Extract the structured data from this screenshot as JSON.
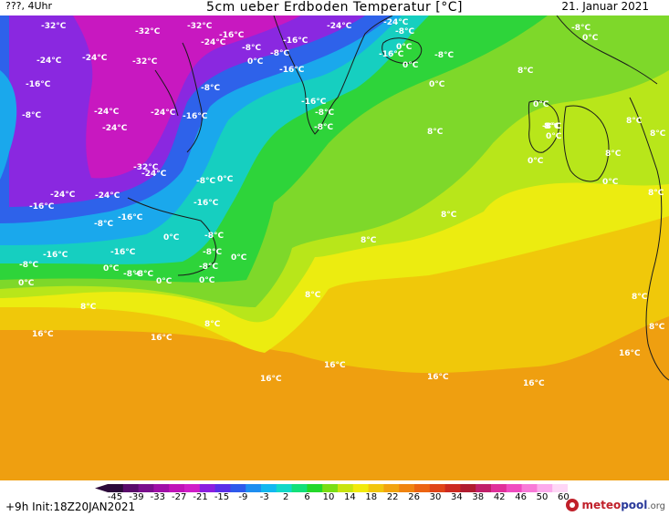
{
  "header": {
    "left": "???, 4Uhr",
    "title": "5cm ueber Erdboden Temperatur [°C]",
    "date": "21. Januar 2021"
  },
  "map": {
    "labels": [
      "-32°C",
      "-32°C",
      "-32°C",
      "-24°C",
      "-24°C",
      "-24°C",
      "-16°C",
      "-16°C",
      "-24°C",
      "-8°C",
      "-24°C",
      "-8°C",
      "-8°C",
      "-16°C",
      "-24°C",
      "-8°C",
      "-32°C",
      "-16°C",
      "-8°C",
      "0°C",
      "-8°C",
      "-16°C",
      "0°C",
      "0°C",
      "0°C",
      "-16°C",
      "-8°C",
      "-24°C",
      "-8°C",
      "-16°C",
      "0°C",
      "8°C",
      "0°C",
      "0°C",
      "-8°C",
      "8°C",
      "-8°C",
      "-24°C",
      "-32°C",
      "-24°C",
      "-24°C",
      "-16°C",
      "-8°C",
      "-8°C",
      "-16°C",
      "-24°C",
      "0°C",
      "-16°C",
      "0°C",
      "-8°C",
      "-16°C",
      "-8°C",
      "-8°C",
      "-8°C",
      "0°C",
      "0°C",
      "-16°C",
      "-8°C",
      "-8°C",
      "0°C",
      "0°C",
      "0°C",
      "8°C",
      "8°C",
      "8°C",
      "8°C",
      "8°C",
      "8°C",
      "0°C",
      "8°C",
      "0°C",
      "8°C",
      "16°C",
      "16°C",
      "8°C",
      "16°C",
      "16°C",
      "16°C",
      "16°C",
      "16°C",
      "8°C",
      "8°C",
      "8°C"
    ]
  },
  "legend": {
    "ticks": [
      "-45",
      "-39",
      "-33",
      "-27",
      "-21",
      "-15",
      "-9",
      "-3",
      "2",
      "6",
      "10",
      "14",
      "18",
      "22",
      "26",
      "30",
      "34",
      "38",
      "42",
      "46",
      "50",
      "60"
    ],
    "colors": [
      "#2c0a3a",
      "#5a0b6b",
      "#7a0f8c",
      "#a010a8",
      "#c014b8",
      "#d01ec8",
      "#8b1ee0",
      "#5a2ee8",
      "#2e5aeb",
      "#1e8ef0",
      "#12b8f0",
      "#12d8c8",
      "#12e07a",
      "#24d82a",
      "#7ade14",
      "#c8e410",
      "#f2ea0c",
      "#f2c60e",
      "#f2a410",
      "#f08410",
      "#ec6412",
      "#e04418",
      "#cc2a20",
      "#b01c30",
      "#c0206a",
      "#e0309a",
      "#f04cc0",
      "#f87ad8",
      "#fcaaec",
      "#fed6f6"
    ]
  },
  "footer": {
    "init": "+9h  Init:18Z20JAN2021",
    "brand_meteo": "meteo",
    "brand_pool": "pool",
    "brand_org": ".org"
  }
}
